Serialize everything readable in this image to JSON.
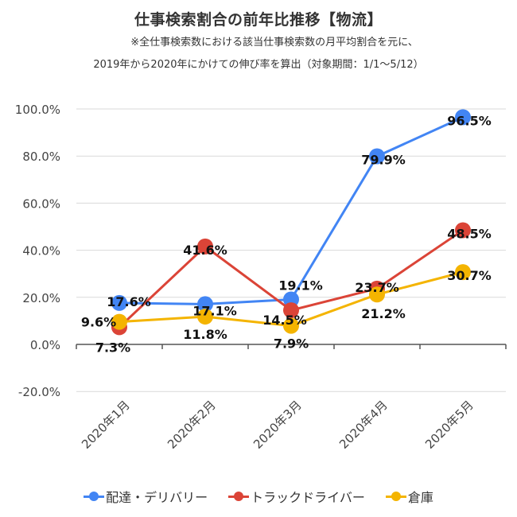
{
  "header": {
    "title": "仕事検索割合の前年比推移【物流】",
    "subtitle_line1": "※全仕事検索数における該当仕事検索数の月平均割合を元に、",
    "subtitle_line2": "2019年から2020年にかけての伸び率を算出（対象期間：1/1〜5/12）"
  },
  "chart_data": {
    "type": "line",
    "title": "仕事検索割合の前年比推移【物流】",
    "xlabel": "",
    "ylabel": "",
    "categories": [
      "2020年1月",
      "2020年2月",
      "2020年3月",
      "2020年4月",
      "2020年5月"
    ],
    "ylim": [
      -20,
      100
    ],
    "yticks": [
      -20,
      0,
      20,
      40,
      60,
      80,
      100
    ],
    "ytick_labels": [
      "-20.0%",
      "0.0%",
      "20.0%",
      "40.0%",
      "60.0%",
      "80.0%",
      "100.0%"
    ],
    "grid": true,
    "legend_position": "bottom",
    "series": [
      {
        "name": "配達・デリバリー",
        "color": "#4285f4",
        "values": [
          17.6,
          17.1,
          19.1,
          79.9,
          96.5
        ],
        "labels": [
          "17.6%",
          "17.1%",
          "19.1%",
          "79.9%",
          "96.5%"
        ]
      },
      {
        "name": "トラックドライバー",
        "color": "#db4437",
        "values": [
          7.3,
          41.6,
          14.5,
          23.7,
          48.5
        ],
        "labels": [
          "7.3%",
          "41.6%",
          "14.5%",
          "23.7%",
          "48.5%"
        ]
      },
      {
        "name": "倉庫",
        "color": "#f4b400",
        "values": [
          9.6,
          11.8,
          7.9,
          21.2,
          30.7
        ],
        "labels": [
          "9.6%",
          "11.8%",
          "7.9%",
          "21.2%",
          "30.7%"
        ]
      }
    ]
  }
}
